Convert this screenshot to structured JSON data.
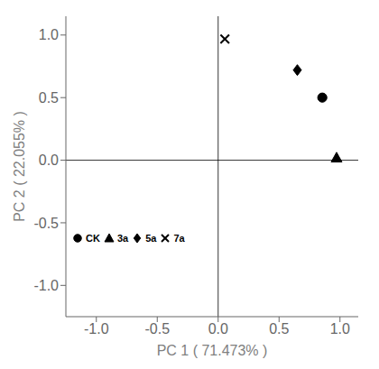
{
  "chart_data": {
    "type": "scatter",
    "xlabel": "PC 1 ( 71.473% )",
    "ylabel": "PC 2 ( 22.055% )",
    "series": [
      {
        "name": "CK",
        "marker": "circle",
        "color": "black",
        "x": [
          0.855
        ],
        "y": [
          0.5
        ]
      },
      {
        "name": "3a",
        "marker": "triangle",
        "color": "black",
        "x": [
          0.972
        ],
        "y": [
          0.02
        ]
      },
      {
        "name": "5a",
        "marker": "diamond",
        "color": "black",
        "x": [
          0.65
        ],
        "y": [
          0.72
        ]
      },
      {
        "name": "7a",
        "marker": "x",
        "color": "black",
        "x": [
          0.055
        ],
        "y": [
          0.968
        ]
      }
    ],
    "xlim": [
      -1.25,
      1.15
    ],
    "ylim": [
      -1.25,
      1.15
    ],
    "xticks": [
      {
        "value": -1.0,
        "label": "-1.0"
      },
      {
        "value": -0.5,
        "label": "-0.5"
      },
      {
        "value": 0.0,
        "label": "0.0"
      },
      {
        "value": 0.5,
        "label": "0.5"
      },
      {
        "value": 1.0,
        "label": "1.0"
      }
    ],
    "yticks": [
      {
        "value": -1.0,
        "label": "-1.0"
      },
      {
        "value": -0.5,
        "label": "-0.5"
      },
      {
        "value": 0.0,
        "label": "0.0"
      },
      {
        "value": 0.5,
        "label": "0.5"
      },
      {
        "value": 1.0,
        "label": "1.0"
      }
    ],
    "legend": "lower left",
    "grid": false
  }
}
